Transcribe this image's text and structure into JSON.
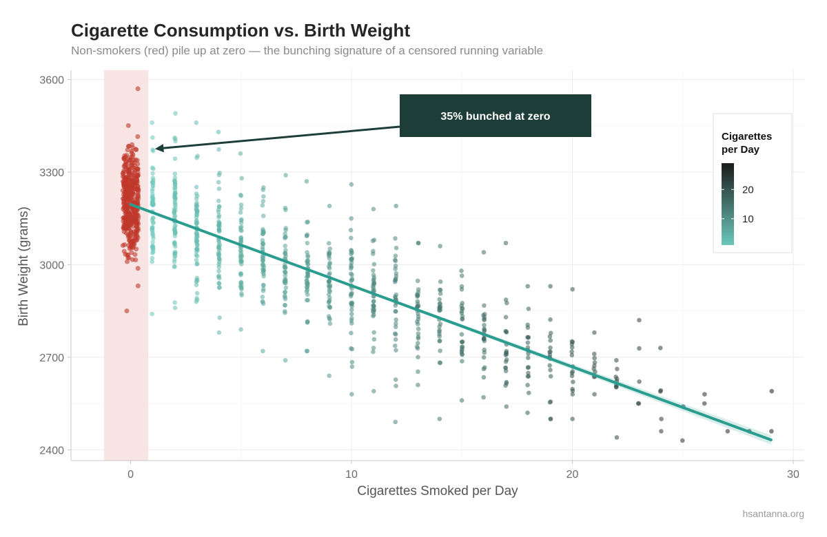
{
  "chart_data": {
    "type": "scatter",
    "title": "Cigarette Consumption vs. Birth Weight",
    "subtitle": "Non-smokers (red) pile up at zero — the bunching signature of a censored running variable",
    "xlabel": "Cigarettes Smoked per Day",
    "ylabel": "Birth Weight (grams)",
    "xlim": [
      -2.7,
      30.5
    ],
    "ylim": [
      2365,
      3630
    ],
    "x_ticks": [
      0,
      10,
      20,
      30
    ],
    "y_ticks": [
      2400,
      2700,
      3000,
      3300,
      3600
    ],
    "grid": true,
    "zero_band": {
      "x_from": -1.2,
      "x_to": 0.8,
      "color": "#f8e5e3"
    },
    "series": [
      {
        "name": "",
        "color": "#c0392b",
        "center_x": 0,
        "jitter": 0.35,
        "n": 420,
        "y_mean": 3205,
        "y_sd": 115,
        "y_range": [
          2850,
          3570
        ]
      },
      {
        "name": "",
        "color_scale": "Cigarettes per Day",
        "columns": [
          {
            "x": 1,
            "n": 60,
            "y_min": 2840,
            "y_max": 3460,
            "y_mean": 3170
          },
          {
            "x": 2,
            "n": 70,
            "y_min": 2860,
            "y_max": 3490,
            "y_mean": 3150
          },
          {
            "x": 3,
            "n": 65,
            "y_min": 2880,
            "y_max": 3460,
            "y_mean": 3120
          },
          {
            "x": 4,
            "n": 55,
            "y_min": 2780,
            "y_max": 3430,
            "y_mean": 3080
          },
          {
            "x": 5,
            "n": 50,
            "y_min": 2790,
            "y_max": 3360,
            "y_mean": 3060
          },
          {
            "x": 6,
            "n": 48,
            "y_min": 2720,
            "y_max": 3250,
            "y_mean": 3030
          },
          {
            "x": 7,
            "n": 45,
            "y_min": 2690,
            "y_max": 3290,
            "y_mean": 3000
          },
          {
            "x": 8,
            "n": 42,
            "y_min": 2720,
            "y_max": 3270,
            "y_mean": 2980
          },
          {
            "x": 9,
            "n": 40,
            "y_min": 2640,
            "y_max": 3190,
            "y_mean": 2950
          },
          {
            "x": 10,
            "n": 45,
            "y_min": 2580,
            "y_max": 3260,
            "y_mean": 2930
          },
          {
            "x": 11,
            "n": 40,
            "y_min": 2590,
            "y_max": 3180,
            "y_mean": 2900
          },
          {
            "x": 12,
            "n": 35,
            "y_min": 2490,
            "y_max": 3190,
            "y_mean": 2870
          },
          {
            "x": 13,
            "n": 32,
            "y_min": 2610,
            "y_max": 3070,
            "y_mean": 2850
          },
          {
            "x": 14,
            "n": 28,
            "y_min": 2500,
            "y_max": 3060,
            "y_mean": 2820
          },
          {
            "x": 15,
            "n": 26,
            "y_min": 2560,
            "y_max": 2980,
            "y_mean": 2790
          },
          {
            "x": 16,
            "n": 24,
            "y_min": 2570,
            "y_max": 3040,
            "y_mean": 2770
          },
          {
            "x": 17,
            "n": 22,
            "y_min": 2540,
            "y_max": 3070,
            "y_mean": 2740
          },
          {
            "x": 18,
            "n": 20,
            "y_min": 2520,
            "y_max": 2930,
            "y_mean": 2720
          },
          {
            "x": 19,
            "n": 18,
            "y_min": 2500,
            "y_max": 2930,
            "y_mean": 2690
          },
          {
            "x": 20,
            "n": 16,
            "y_min": 2500,
            "y_max": 2920,
            "y_mean": 2670
          },
          {
            "x": 21,
            "n": 10,
            "y_min": 2580,
            "y_max": 2780,
            "y_mean": 2660
          },
          {
            "x": 22,
            "n": 9,
            "y_min": 2440,
            "y_max": 2690,
            "y_mean": 2620
          },
          {
            "x": 23,
            "n": 5,
            "y_min": 2550,
            "y_max": 2820,
            "y_mean": 2620
          },
          {
            "x": 24,
            "n": 5,
            "y_min": 2460,
            "y_max": 2730,
            "y_mean": 2580
          },
          {
            "x": 25,
            "n": 2,
            "y_min": 2430,
            "y_max": 2540,
            "y_mean": 2500
          },
          {
            "x": 26,
            "n": 2,
            "y_min": 2550,
            "y_max": 2580,
            "y_mean": 2560
          },
          {
            "x": 27,
            "n": 1,
            "y_min": 2460,
            "y_max": 2460,
            "y_mean": 2460
          },
          {
            "x": 28,
            "n": 1,
            "y_min": 2460,
            "y_max": 2460,
            "y_mean": 2460
          },
          {
            "x": 29,
            "n": 2,
            "y_min": 2460,
            "y_max": 2590,
            "y_mean": 2520
          }
        ]
      }
    ],
    "trend_line": {
      "x": [
        0,
        29
      ],
      "y": [
        3195,
        2432
      ],
      "color": "#2a9d8f"
    },
    "annotation": {
      "text": "35% bunched at zero",
      "points_to": {
        "x": 1.1,
        "y": 3375
      },
      "box_fill": "#1d3d38",
      "arrow_color": "#1d3d38"
    },
    "legend": {
      "title_lines": [
        "Cigarettes",
        "per Day"
      ],
      "ticks": [
        10,
        20
      ],
      "range": [
        1,
        29
      ],
      "low_color": "#6cc7bb",
      "high_color": "#1c1c1c",
      "placement": "right"
    },
    "caption": "hsantanna.org"
  }
}
